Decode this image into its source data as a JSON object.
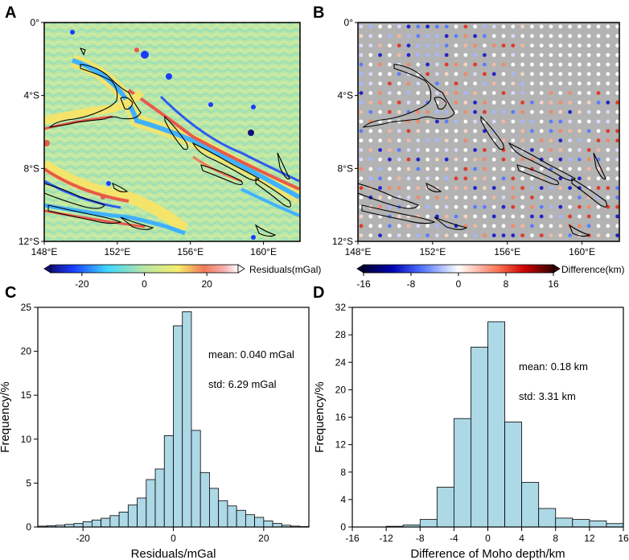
{
  "panels": {
    "A": {
      "letter": "A"
    },
    "B": {
      "letter": "B"
    },
    "C": {
      "letter": "C"
    },
    "D": {
      "letter": "D"
    }
  },
  "maps": {
    "lat_labels": [
      "0°",
      "4°S",
      "8°S",
      "12°S"
    ],
    "lon_labels": [
      "148°E",
      "152°E",
      "156°E",
      "160°E"
    ],
    "colorbar_A": {
      "label": "Residuals(mGal)",
      "ticks": [
        "-20",
        "0",
        "20"
      ],
      "range": [
        -30,
        30
      ]
    },
    "colorbar_B": {
      "label": "Difference(km)",
      "ticks": [
        "-16",
        "-8",
        "0",
        "8",
        "16"
      ],
      "range": [
        -16,
        16
      ]
    },
    "colors": {
      "ocean_bg": "#b8e6a6",
      "dot_bg": "#b3b3b3",
      "coast": "#000000"
    }
  },
  "chart_data": [
    {
      "panel": "C",
      "type": "bar",
      "xlabel": "Residuals/mGal",
      "ylabel": "Frequency/%",
      "xlim": [
        -30,
        30
      ],
      "ylim": [
        0,
        25
      ],
      "xticks": [
        "-20",
        "0",
        "20"
      ],
      "yticks": [
        "0",
        "5",
        "10",
        "15",
        "20",
        "25"
      ],
      "bin_width": 2,
      "bin_start": -30,
      "values": [
        0.1,
        0.15,
        0.2,
        0.3,
        0.4,
        0.6,
        0.8,
        1.0,
        1.3,
        1.7,
        2.5,
        3.3,
        5.4,
        6.6,
        10.4,
        22.9,
        24.5,
        11.0,
        6.2,
        4.4,
        3.0,
        2.4,
        1.9,
        1.4,
        1.1,
        0.7,
        0.4,
        0.2,
        0.1,
        0.05
      ],
      "annotations": [
        "mean: 0.040 mGal",
        "std: 6.29 mGal"
      ],
      "bar_color": "#add8e6"
    },
    {
      "panel": "D",
      "type": "bar",
      "xlabel": "Difference of Moho depth/km",
      "ylabel": "Frequency/%",
      "xlim": [
        -16,
        16
      ],
      "ylim": [
        0,
        32
      ],
      "xticks": [
        "-16",
        "-12",
        "-8",
        "-4",
        "0",
        "4",
        "8",
        "12",
        "16"
      ],
      "yticks": [
        "0",
        "4",
        "8",
        "12",
        "16",
        "20",
        "24",
        "28",
        "32"
      ],
      "bin_width": 2,
      "bin_start": -16,
      "values": [
        0,
        0,
        0.1,
        0.3,
        1.1,
        5.8,
        15.8,
        26.2,
        29.9,
        15.3,
        6.5,
        2.7,
        1.3,
        1.1,
        0.9,
        0.5
      ],
      "annotations": [
        "mean: 0.18 km",
        "std: 3.31 km"
      ],
      "bar_color": "#add8e6"
    }
  ]
}
